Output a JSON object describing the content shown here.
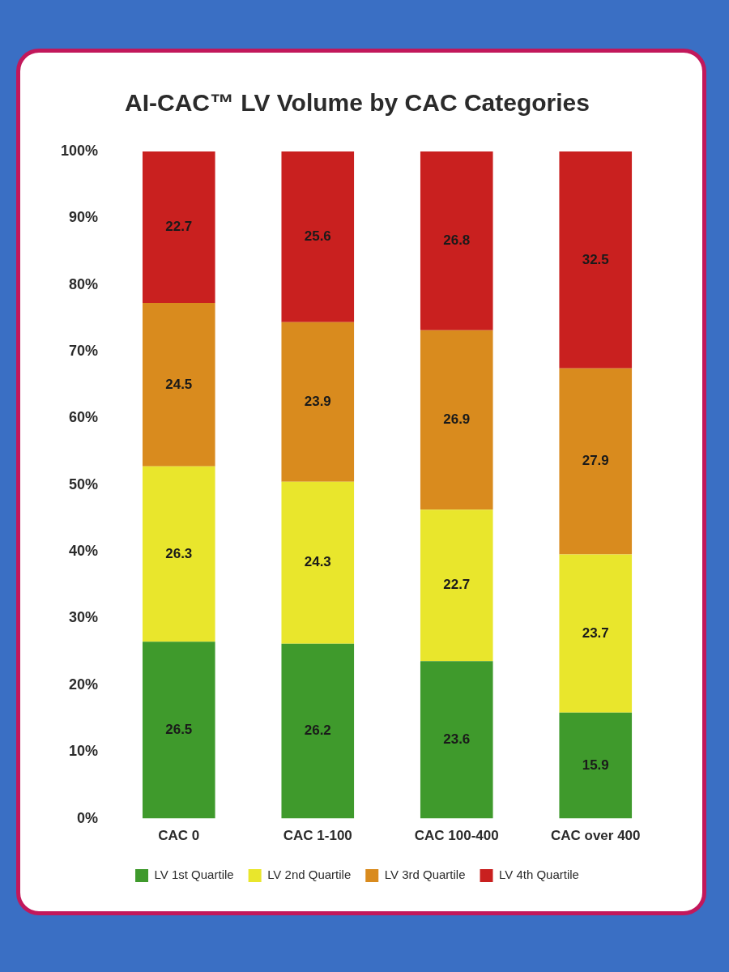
{
  "chart_data": {
    "type": "bar",
    "title": "AI-CAC™ LV Volume by CAC Categories",
    "categories": [
      "CAC 0",
      "CAC 1-100",
      "CAC 100-400",
      "CAC over 400"
    ],
    "series": [
      {
        "name": "LV 1st Quartile",
        "color": "#3f9a2c",
        "values": [
          26.5,
          26.2,
          23.6,
          15.9
        ]
      },
      {
        "name": "LV 2nd Quartile",
        "color": "#e9e62c",
        "values": [
          26.3,
          24.3,
          22.7,
          23.7
        ]
      },
      {
        "name": "LV 3rd Quartile",
        "color": "#d98b1e",
        "values": [
          24.5,
          23.9,
          26.9,
          27.9
        ]
      },
      {
        "name": "LV 4th Quartile",
        "color": "#c9201f",
        "values": [
          22.7,
          25.6,
          26.8,
          32.5
        ]
      }
    ],
    "ylim": [
      0,
      100
    ],
    "yticks": [
      {
        "value": 0,
        "label": "0%"
      },
      {
        "value": 10,
        "label": "10%"
      },
      {
        "value": 20,
        "label": "20%"
      },
      {
        "value": 30,
        "label": "30%"
      },
      {
        "value": 40,
        "label": "40%"
      },
      {
        "value": 50,
        "label": "50%"
      },
      {
        "value": 60,
        "label": "60%"
      },
      {
        "value": 70,
        "label": "70%"
      },
      {
        "value": 80,
        "label": "80%"
      },
      {
        "value": 90,
        "label": "90%"
      },
      {
        "value": 100,
        "label": "100%"
      }
    ],
    "stacked": true,
    "data_labels": true,
    "legend": "bottom",
    "grid": false
  }
}
